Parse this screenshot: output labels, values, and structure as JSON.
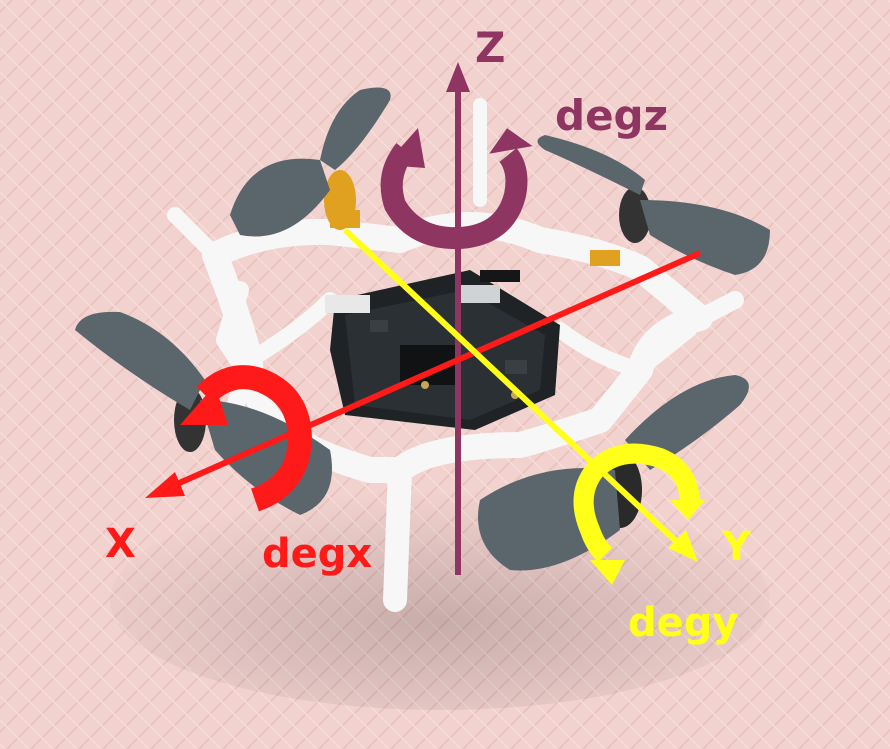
{
  "axes": {
    "z": {
      "label": "Z",
      "rotation_label": "degz",
      "color": "#8e3562"
    },
    "x": {
      "label": "X",
      "rotation_label": "degx",
      "color": "#ff1a1a"
    },
    "y": {
      "label": "Y",
      "rotation_label": "degy",
      "color": "#ffff1a"
    }
  },
  "colors": {
    "background": "#f2d2cf",
    "frame": "#f7f7f7",
    "propeller": "#5a666c",
    "board": "#1f2326",
    "motor": "#e0a020"
  }
}
